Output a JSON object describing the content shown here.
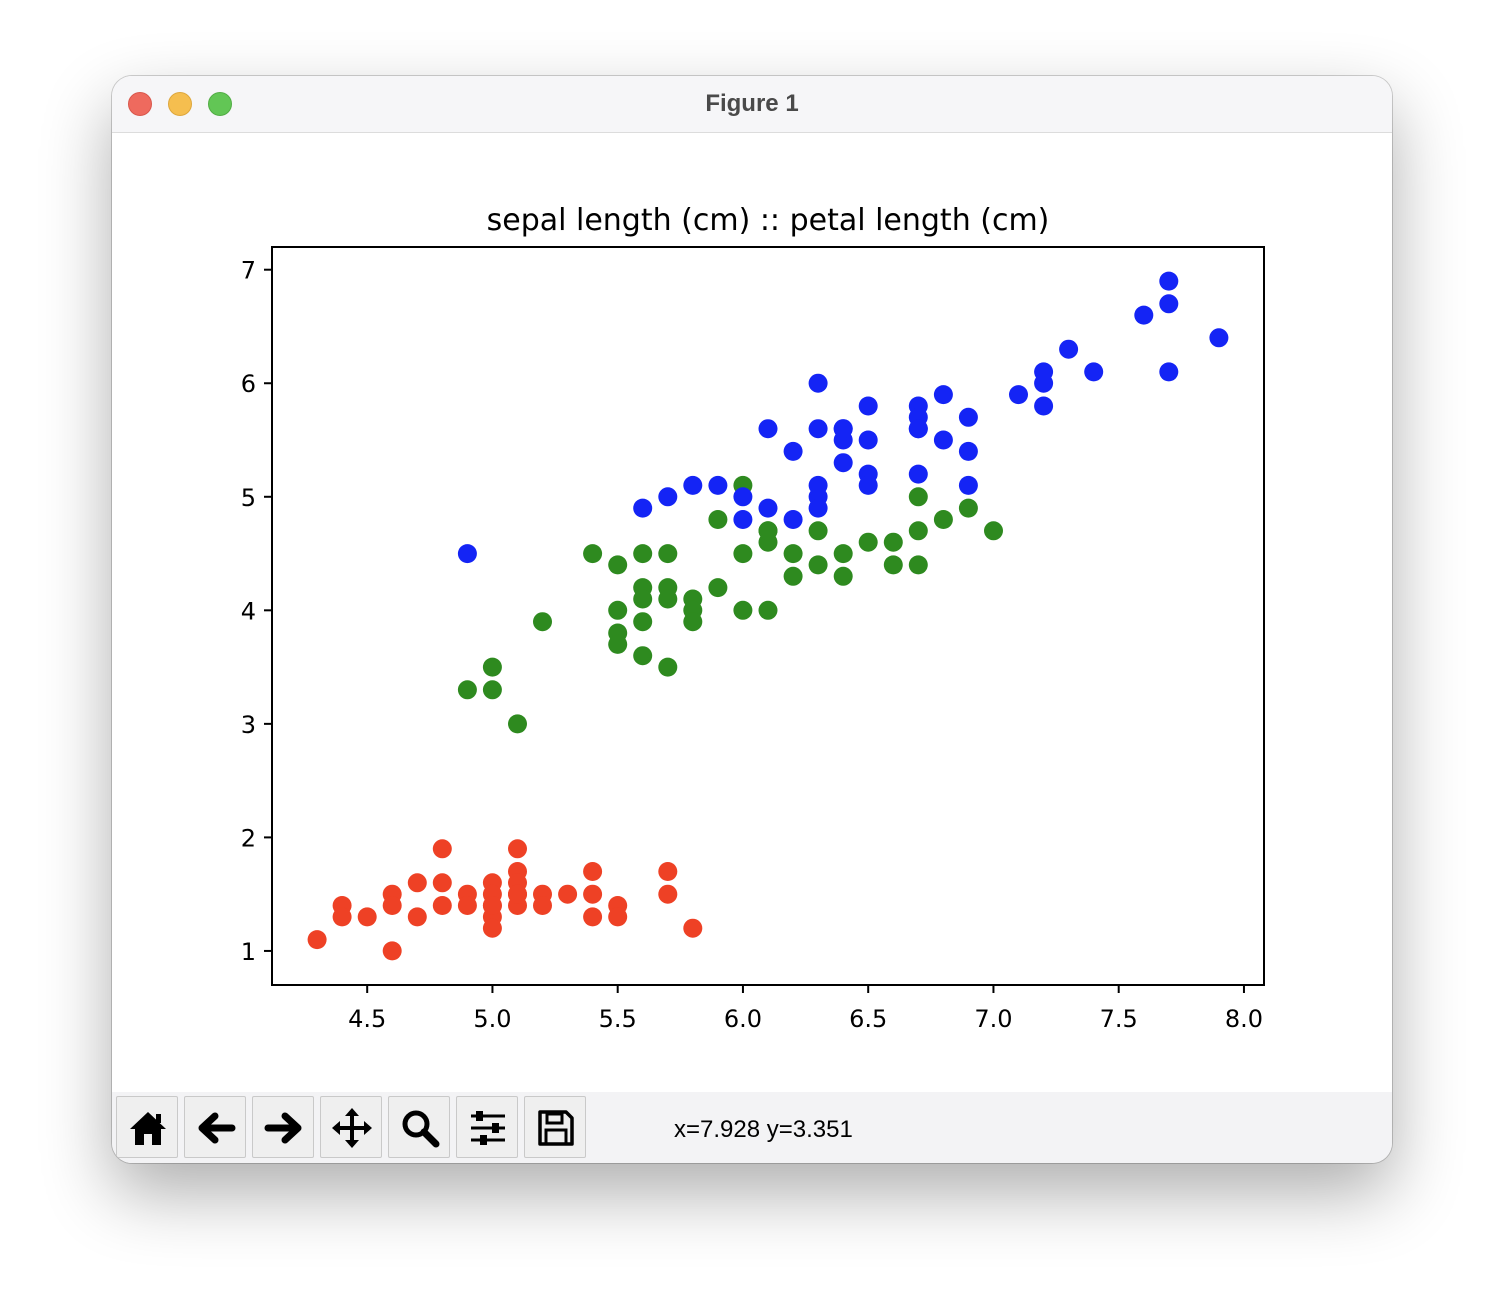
{
  "window": {
    "title": "Figure 1"
  },
  "toolbar": {
    "buttons": [
      {
        "name": "home-button",
        "icon": "home-icon"
      },
      {
        "name": "back-button",
        "icon": "arrow-left-icon"
      },
      {
        "name": "forward-button",
        "icon": "arrow-right-icon"
      },
      {
        "name": "pan-button",
        "icon": "move-icon"
      },
      {
        "name": "zoom-button",
        "icon": "magnifier-icon"
      },
      {
        "name": "configure-subplots-button",
        "icon": "sliders-icon"
      },
      {
        "name": "save-button",
        "icon": "floppy-disk-icon"
      }
    ],
    "coordinates": "x=7.928 y=3.351"
  },
  "chart_data": {
    "type": "scatter",
    "title": "sepal length (cm) :: petal length (cm)",
    "xlabel": "",
    "ylabel": "",
    "xlim": [
      4.12,
      8.08
    ],
    "ylim": [
      0.7,
      7.2
    ],
    "xticks": [
      4.5,
      5.0,
      5.5,
      6.0,
      6.5,
      7.0,
      7.5,
      8.0
    ],
    "xtick_labels": [
      "4.5",
      "5.0",
      "5.5",
      "6.0",
      "6.5",
      "7.0",
      "7.5",
      "8.0"
    ],
    "yticks": [
      1,
      2,
      3,
      4,
      5,
      6,
      7
    ],
    "ytick_labels": [
      "1",
      "2",
      "3",
      "4",
      "5",
      "6",
      "7"
    ],
    "grid": false,
    "series": [
      {
        "color": "#ee4125",
        "x": [
          4.3,
          4.4,
          4.4,
          4.5,
          4.6,
          4.6,
          4.6,
          4.7,
          4.7,
          4.8,
          4.8,
          4.8,
          4.9,
          4.9,
          5.0,
          5.0,
          5.0,
          5.0,
          5.0,
          5.0,
          5.1,
          5.1,
          5.1,
          5.1,
          5.1,
          5.1,
          5.2,
          5.2,
          5.3,
          5.4,
          5.4,
          5.4,
          5.5,
          5.5,
          5.7,
          5.7,
          5.8
        ],
        "y": [
          1.1,
          1.4,
          1.3,
          1.3,
          1.5,
          1.4,
          1.0,
          1.6,
          1.3,
          1.9,
          1.6,
          1.4,
          1.5,
          1.4,
          1.6,
          1.5,
          1.4,
          1.3,
          1.2,
          1.4,
          1.9,
          1.7,
          1.6,
          1.5,
          1.4,
          1.5,
          1.5,
          1.4,
          1.5,
          1.7,
          1.5,
          1.3,
          1.4,
          1.3,
          1.7,
          1.5,
          1.2
        ]
      },
      {
        "color": "#2e8a1f",
        "x": [
          4.9,
          5.0,
          5.0,
          5.1,
          5.2,
          5.4,
          5.5,
          5.5,
          5.5,
          5.5,
          5.6,
          5.6,
          5.6,
          5.6,
          5.6,
          5.7,
          5.7,
          5.7,
          5.7,
          5.8,
          5.8,
          5.8,
          5.9,
          5.9,
          6.0,
          6.0,
          6.0,
          6.1,
          6.1,
          6.1,
          6.1,
          6.2,
          6.2,
          6.3,
          6.3,
          6.4,
          6.4,
          6.5,
          6.6,
          6.6,
          6.7,
          6.7,
          6.7,
          6.8,
          6.9,
          7.0
        ],
        "y": [
          3.3,
          3.5,
          3.3,
          3.0,
          3.9,
          4.5,
          4.4,
          4.0,
          3.8,
          3.7,
          4.5,
          4.2,
          4.1,
          3.9,
          3.6,
          4.5,
          4.2,
          4.1,
          3.5,
          4.1,
          4.0,
          3.9,
          4.8,
          4.2,
          5.1,
          4.5,
          4.0,
          4.7,
          4.6,
          4.0,
          4.7,
          4.5,
          4.3,
          4.7,
          4.4,
          4.5,
          4.3,
          4.6,
          4.6,
          4.4,
          5.0,
          4.7,
          4.4,
          4.8,
          4.9,
          4.7
        ]
      },
      {
        "color": "#1424f5",
        "x": [
          4.9,
          5.6,
          5.7,
          5.8,
          5.9,
          6.0,
          6.0,
          6.1,
          6.1,
          6.2,
          6.2,
          6.3,
          6.3,
          6.3,
          6.3,
          6.3,
          6.4,
          6.4,
          6.4,
          6.4,
          6.5,
          6.5,
          6.5,
          6.5,
          6.7,
          6.7,
          6.7,
          6.7,
          6.7,
          6.8,
          6.8,
          6.9,
          6.9,
          6.9,
          7.1,
          7.2,
          7.2,
          7.2,
          7.3,
          7.4,
          7.6,
          7.7,
          7.7,
          7.7,
          7.9
        ],
        "y": [
          4.5,
          4.9,
          5.0,
          5.1,
          5.1,
          5.0,
          4.8,
          5.6,
          4.9,
          5.4,
          4.8,
          6.0,
          5.6,
          5.1,
          5.0,
          4.9,
          5.6,
          5.5,
          5.3,
          5.6,
          5.8,
          5.5,
          5.2,
          5.1,
          5.8,
          5.7,
          5.6,
          5.2,
          5.6,
          5.9,
          5.5,
          5.7,
          5.4,
          5.1,
          5.9,
          6.1,
          6.0,
          5.8,
          6.3,
          6.1,
          6.6,
          6.9,
          6.7,
          6.1,
          6.4
        ]
      }
    ]
  }
}
